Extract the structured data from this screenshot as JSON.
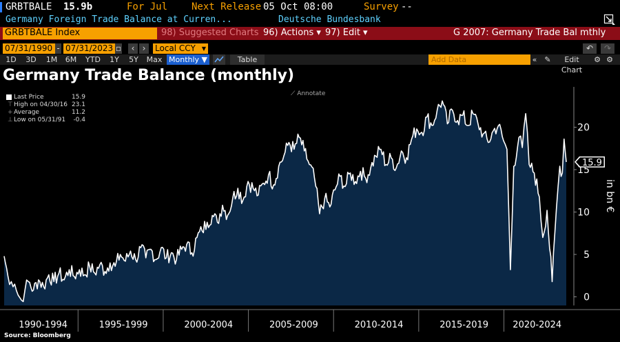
{
  "header": {
    "ticker": "GRBTBALE",
    "price": "15.9b",
    "period_label": "For Jul",
    "next_release_label": "Next Release",
    "next_release_value": "05 Oct 08:00",
    "survey_label": "Survey",
    "survey_value": "--",
    "description": "Germany Foreign Trade Balance at Curren...",
    "source_name": "Deutsche Bundesbank"
  },
  "toolbar": {
    "security": "GRBTBALE Index",
    "suggested": "98) Suggested Charts",
    "actions": "96) Actions ▾",
    "edit": "97) Edit ▾",
    "chart_name": "G 2007: Germany Trade Bal mthly"
  },
  "range": {
    "start": "07/31/1990",
    "end": "07/31/2023",
    "currency": "Local CCY",
    "add_data": "Add Data",
    "edit_chart": "Edit Chart"
  },
  "periods": [
    "1D",
    "3D",
    "1M",
    "6M",
    "YTD",
    "1Y",
    "5Y",
    "Max"
  ],
  "frequency": "Monthly ▼",
  "table_label": "Table",
  "legend": {
    "items": [
      {
        "label": "Last Price",
        "value": "15.9"
      },
      {
        "label": "High on 04/30/16",
        "value": "23.1"
      },
      {
        "label": "Average",
        "value": "11.2"
      },
      {
        "label": "Low on 05/31/91",
        "value": "-0.4"
      }
    ],
    "annotate": "Annotate"
  },
  "footer": {
    "source": "Source: Bloomberg"
  },
  "colors": {
    "orange": "#f7a000",
    "red_bar": "#8b0d17",
    "cyan": "#5fd2ff",
    "fill": "#0b2846"
  },
  "chart_data": {
    "type": "area",
    "title": "Germany Trade Balance (monthly)",
    "ylabel": "in bn €",
    "ylim": [
      -1,
      25
    ],
    "y_ticks": [
      0,
      5,
      10,
      15,
      20
    ],
    "x_range": [
      1990.58,
      2023.58
    ],
    "x_groups": [
      "1990-1994",
      "1995-1999",
      "2000-2004",
      "2005-2009",
      "2010-2014",
      "2015-2019",
      "2020-2024"
    ],
    "last_value": "15.9",
    "points": [
      [
        1990.58,
        4.8
      ],
      [
        1990.8,
        2.5
      ],
      [
        1991.0,
        1.8
      ],
      [
        1991.2,
        1.5
      ],
      [
        1991.4,
        0.2
      ],
      [
        1991.6,
        -0.4
      ],
      [
        1991.8,
        0.8
      ],
      [
        1992.0,
        1.8
      ],
      [
        1992.3,
        0.8
      ],
      [
        1992.6,
        2.0
      ],
      [
        1992.9,
        1.2
      ],
      [
        1993.2,
        2.6
      ],
      [
        1993.5,
        1.8
      ],
      [
        1993.8,
        2.8
      ],
      [
        1994.1,
        2.0
      ],
      [
        1994.4,
        3.2
      ],
      [
        1994.7,
        2.4
      ],
      [
        1995.0,
        3.2
      ],
      [
        1995.3,
        2.6
      ],
      [
        1995.6,
        3.6
      ],
      [
        1995.9,
        2.8
      ],
      [
        1996.2,
        3.8
      ],
      [
        1996.5,
        3.0
      ],
      [
        1996.8,
        4.0
      ],
      [
        1997.1,
        3.6
      ],
      [
        1997.4,
        5.0
      ],
      [
        1997.7,
        4.2
      ],
      [
        1998.0,
        5.4
      ],
      [
        1998.3,
        4.4
      ],
      [
        1998.6,
        5.8
      ],
      [
        1998.9,
        4.6
      ],
      [
        1999.2,
        5.6
      ],
      [
        1999.5,
        4.4
      ],
      [
        1999.8,
        5.8
      ],
      [
        2000.1,
        4.6
      ],
      [
        2000.4,
        5.2
      ],
      [
        2000.7,
        4.4
      ],
      [
        2001.0,
        5.6
      ],
      [
        2001.3,
        6.2
      ],
      [
        2001.6,
        5.2
      ],
      [
        2001.9,
        7.0
      ],
      [
        2002.2,
        7.8
      ],
      [
        2002.5,
        8.8
      ],
      [
        2002.8,
        9.6
      ],
      [
        2003.1,
        8.8
      ],
      [
        2003.4,
        10.8
      ],
      [
        2003.7,
        9.6
      ],
      [
        2004.0,
        11.6
      ],
      [
        2004.3,
        12.8
      ],
      [
        2004.6,
        11.4
      ],
      [
        2004.9,
        13.6
      ],
      [
        2005.2,
        12.8
      ],
      [
        2005.5,
        12.0
      ],
      [
        2005.8,
        13.4
      ],
      [
        2006.1,
        14.4
      ],
      [
        2006.4,
        13.2
      ],
      [
        2006.7,
        15.4
      ],
      [
        2007.0,
        16.6
      ],
      [
        2007.3,
        18.2
      ],
      [
        2007.6,
        17.4
      ],
      [
        2007.9,
        18.8
      ],
      [
        2008.2,
        17.2
      ],
      [
        2008.5,
        15.6
      ],
      [
        2008.8,
        14.0
      ],
      [
        2009.1,
        9.8
      ],
      [
        2009.4,
        11.6
      ],
      [
        2009.7,
        10.6
      ],
      [
        2010.0,
        12.6
      ],
      [
        2010.3,
        14.2
      ],
      [
        2010.6,
        13.0
      ],
      [
        2010.9,
        14.6
      ],
      [
        2011.2,
        13.6
      ],
      [
        2011.5,
        14.8
      ],
      [
        2011.8,
        14.0
      ],
      [
        2012.1,
        15.2
      ],
      [
        2012.4,
        16.6
      ],
      [
        2012.7,
        17.4
      ],
      [
        2013.0,
        15.6
      ],
      [
        2013.3,
        16.4
      ],
      [
        2013.6,
        15.2
      ],
      [
        2013.9,
        17.2
      ],
      [
        2014.2,
        16.4
      ],
      [
        2014.5,
        18.6
      ],
      [
        2014.8,
        19.8
      ],
      [
        2015.1,
        19.4
      ],
      [
        2015.4,
        21.2
      ],
      [
        2015.7,
        20.2
      ],
      [
        2016.0,
        22.0
      ],
      [
        2016.3,
        23.1
      ],
      [
        2016.6,
        20.4
      ],
      [
        2016.9,
        22.0
      ],
      [
        2017.2,
        20.8
      ],
      [
        2017.5,
        21.4
      ],
      [
        2017.8,
        20.2
      ],
      [
        2018.1,
        21.6
      ],
      [
        2018.4,
        20.4
      ],
      [
        2018.7,
        19.2
      ],
      [
        2019.0,
        18.2
      ],
      [
        2019.3,
        19.6
      ],
      [
        2019.6,
        20.2
      ],
      [
        2019.9,
        18.4
      ],
      [
        2020.1,
        17.4
      ],
      [
        2020.3,
        3.2
      ],
      [
        2020.5,
        15.4
      ],
      [
        2020.8,
        18.8
      ],
      [
        2021.0,
        17.6
      ],
      [
        2021.2,
        21.6
      ],
      [
        2021.4,
        15.6
      ],
      [
        2021.7,
        14.6
      ],
      [
        2022.0,
        11.8
      ],
      [
        2022.2,
        7.0
      ],
      [
        2022.45,
        10.2
      ],
      [
        2022.75,
        1.8
      ],
      [
        2023.0,
        10.4
      ],
      [
        2023.2,
        15.4
      ],
      [
        2023.35,
        14.6
      ],
      [
        2023.45,
        18.6
      ],
      [
        2023.58,
        15.9
      ]
    ]
  }
}
